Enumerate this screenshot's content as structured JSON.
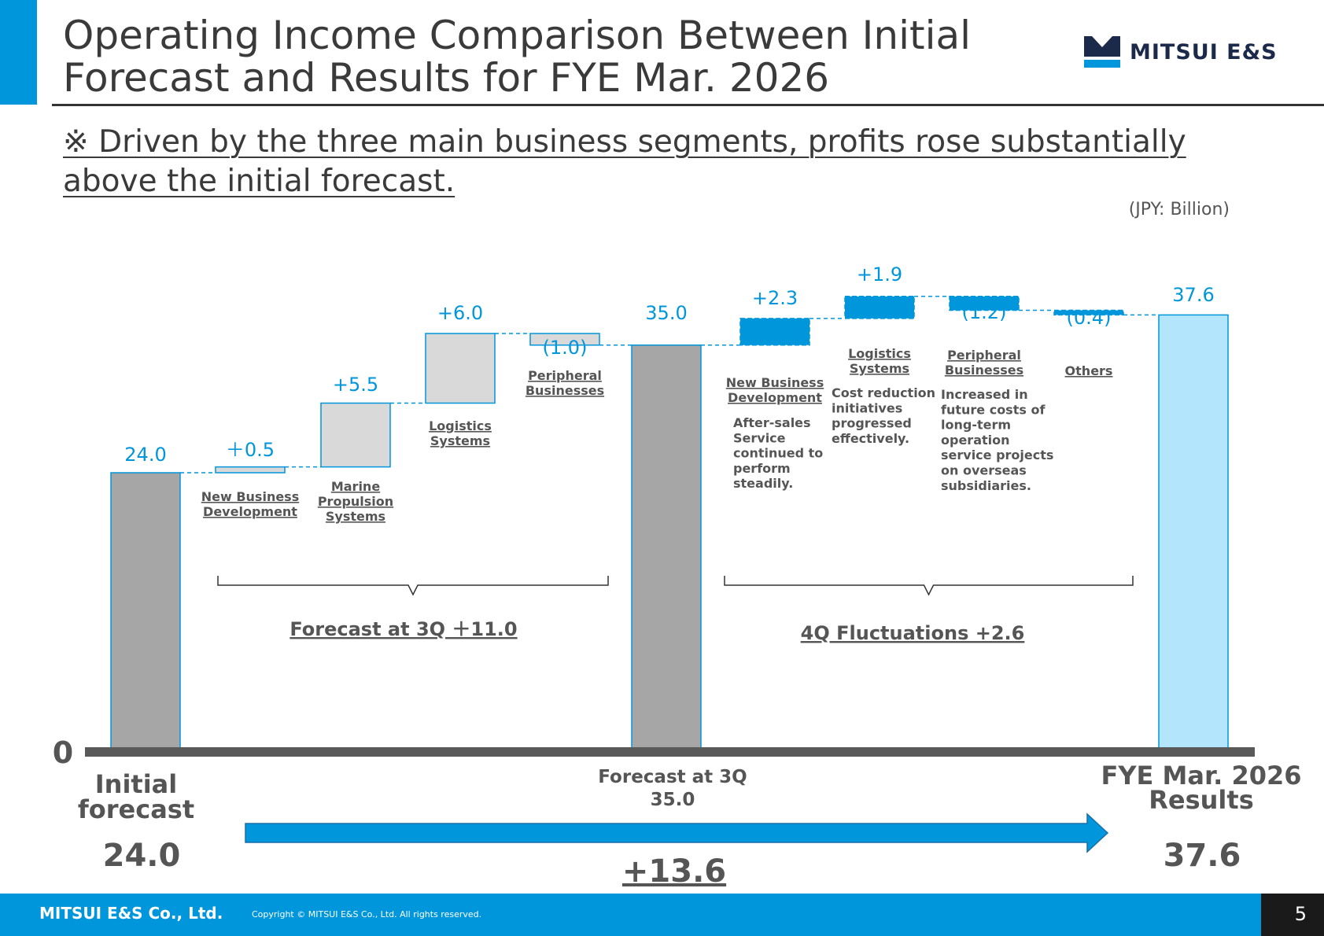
{
  "header": {
    "title": "Operating Income Comparison Between Initial Forecast and Results for FYE Mar. 2026",
    "subtitle": "※ Driven by the three main business segments, profits rose substantially above the initial forecast.",
    "logo_text": "MITSUI E&S",
    "unit": "(JPY: Billion)"
  },
  "chart_data": {
    "type": "bar",
    "subtype": "waterfall",
    "zero_label": "0",
    "bars": [
      {
        "label": "Initial forecast",
        "value": 24.0,
        "value_label": "24.0",
        "kind": "total"
      },
      {
        "label": "New Business Development",
        "value": 0.5,
        "value_label": "＋0.5",
        "kind": "delta-3q"
      },
      {
        "label": "Marine Propulsion Systems",
        "value": 5.5,
        "value_label": "+5.5",
        "kind": "delta-3q"
      },
      {
        "label": "Logistics Systems",
        "value": 6.0,
        "value_label": "+6.0",
        "kind": "delta-3q"
      },
      {
        "label": "Peripheral Businesses",
        "value": -1.0,
        "value_label": "(1.0)",
        "kind": "delta-3q"
      },
      {
        "label": "Forecast at 3Q",
        "value": 35.0,
        "value_label": "35.0",
        "kind": "total"
      },
      {
        "label": "New Business Development",
        "value": 2.3,
        "value_label": "+2.3",
        "kind": "delta-4q",
        "note": "After-sales Service continued to perform steadily."
      },
      {
        "label": "Logistics Systems",
        "value": 1.9,
        "value_label": "+1.9",
        "kind": "delta-4q",
        "note": "Cost reduction initiatives progressed effectively."
      },
      {
        "label": "Peripheral Businesses",
        "value": -1.2,
        "value_label": "(1.2)",
        "kind": "delta-4q",
        "note": "Increased in future costs of long-term operation service projects on overseas subsidiaries."
      },
      {
        "label": "Others",
        "value": -0.4,
        "value_label": "(0.4)",
        "kind": "delta-4q"
      },
      {
        "label": "FYE Mar. 2026 Results",
        "value": 37.6,
        "value_label": "37.6",
        "kind": "result"
      }
    ],
    "groups": [
      {
        "label": "Forecast at 3Q ＋11.0",
        "value": 11.0
      },
      {
        "label": "4Q Fluctuations +2.6",
        "value": 2.6
      }
    ],
    "bottom": {
      "initial_label": "Initial forecast",
      "initial_value": "24.0",
      "mid_label": "Forecast at 3Q",
      "mid_value": "35.0",
      "result_label": "FYE Mar. 2026 Results",
      "result_value": "37.6",
      "total_change": "+13.6"
    },
    "colors": {
      "total": "#a6a6a6",
      "delta_3q": "#d9d9d9",
      "delta_4q": "#0096dc",
      "result": "#b3e5fc",
      "accent": "#0096dc"
    }
  },
  "footer": {
    "company": "MITSUI E&S Co., Ltd.",
    "copyright": "Copyright © MITSUI E&S Co., Ltd. All rights reserved.",
    "page": "5"
  }
}
